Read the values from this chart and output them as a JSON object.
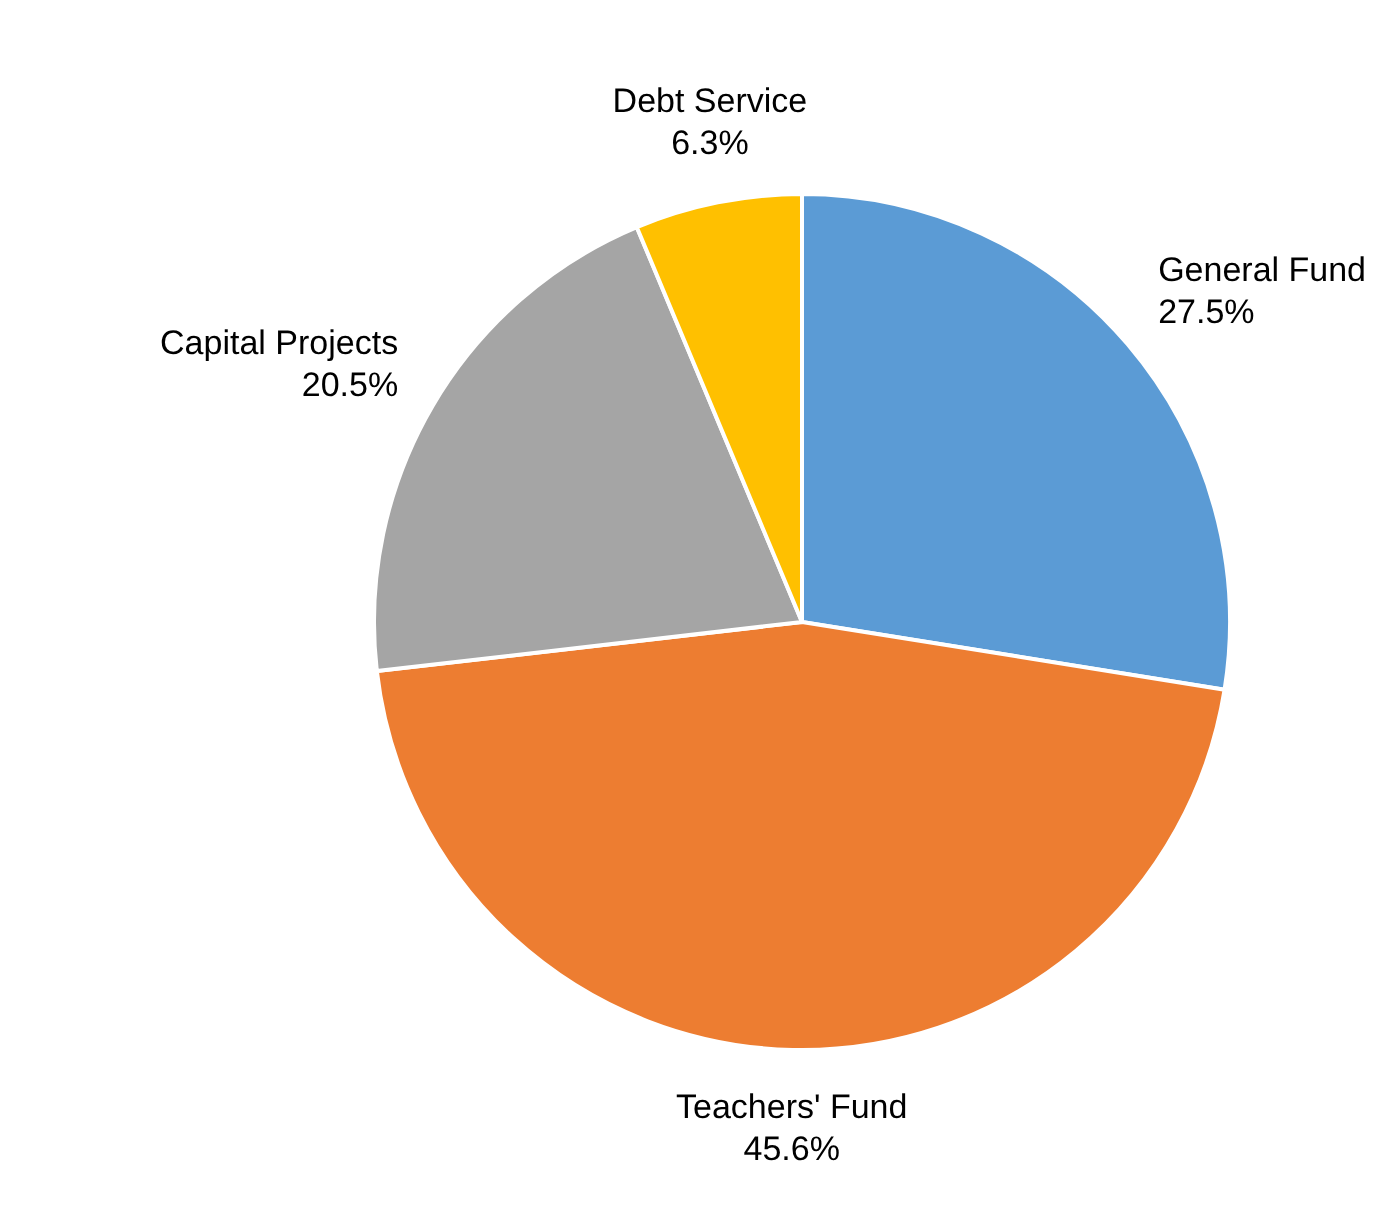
{
  "chart_data": {
    "type": "pie",
    "categories": [
      "General Fund",
      "Teachers' Fund",
      "Capital Projects",
      "Debt Service"
    ],
    "values": [
      27.5,
      45.6,
      20.5,
      6.3
    ],
    "colors": [
      "#5b9bd5",
      "#ed7d31",
      "#a5a5a5",
      "#ffc000"
    ],
    "value_labels": [
      "27.5%",
      "45.6%",
      "20.5%",
      "6.3%"
    ],
    "legend": false
  }
}
